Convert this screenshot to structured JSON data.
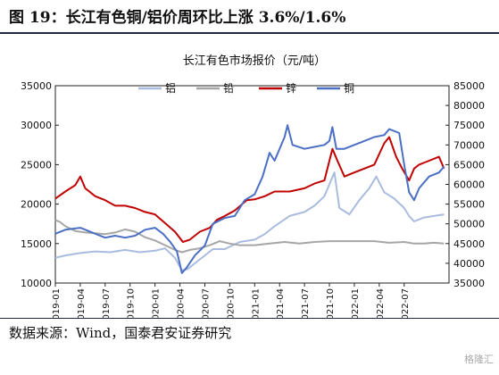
{
  "figure": {
    "title": "图 19：长江有色铜/铝价周环比上涨 3.6%/1.6%",
    "source": "数据来源：Wind，国泰君安证券研究",
    "watermark": "格隆汇"
  },
  "chart_data": {
    "type": "line",
    "title": "长江有色市场报价（元/吨）",
    "xlabel": "",
    "ylabel": "",
    "x_ticks": [
      "2019-01",
      "2019-04",
      "2019-07",
      "2019-10",
      "2020-01",
      "2020-04",
      "2020-07",
      "2020-10",
      "2021-01",
      "2021-04",
      "2021-07",
      "2021-10",
      "2022-01",
      "2022-04",
      "2022-07"
    ],
    "x_range": [
      2019.0,
      2022.95
    ],
    "ylim_left": [
      10000,
      35000
    ],
    "yticks_left": [
      10000,
      15000,
      20000,
      25000,
      30000,
      35000
    ],
    "ylim_right": [
      35000,
      85000
    ],
    "yticks_right": [
      35000,
      40000,
      45000,
      50000,
      55000,
      60000,
      65000,
      70000,
      75000,
      80000,
      85000
    ],
    "legend_position": "top",
    "grid": false,
    "series": [
      {
        "name": "铝",
        "axis": "left",
        "color": "#a9bcdf",
        "points": [
          [
            2019.0,
            13200
          ],
          [
            2019.1,
            13500
          ],
          [
            2019.25,
            13800
          ],
          [
            2019.4,
            14000
          ],
          [
            2019.55,
            13900
          ],
          [
            2019.7,
            14200
          ],
          [
            2019.85,
            13900
          ],
          [
            2020.0,
            14100
          ],
          [
            2020.1,
            14400
          ],
          [
            2020.2,
            13200
          ],
          [
            2020.27,
            11600
          ],
          [
            2020.33,
            11800
          ],
          [
            2020.4,
            12500
          ],
          [
            2020.5,
            13500
          ],
          [
            2020.58,
            14300
          ],
          [
            2020.7,
            14300
          ],
          [
            2020.85,
            15200
          ],
          [
            2021.0,
            15500
          ],
          [
            2021.1,
            16200
          ],
          [
            2021.2,
            17200
          ],
          [
            2021.35,
            18500
          ],
          [
            2021.5,
            19000
          ],
          [
            2021.6,
            19800
          ],
          [
            2021.7,
            21000
          ],
          [
            2021.75,
            22500
          ],
          [
            2021.8,
            24000
          ],
          [
            2021.85,
            19500
          ],
          [
            2021.95,
            18700
          ],
          [
            2022.05,
            20500
          ],
          [
            2022.15,
            22000
          ],
          [
            2022.22,
            23500
          ],
          [
            2022.3,
            21500
          ],
          [
            2022.4,
            20700
          ],
          [
            2022.5,
            19500
          ],
          [
            2022.55,
            18500
          ],
          [
            2022.6,
            17800
          ],
          [
            2022.7,
            18300
          ],
          [
            2022.8,
            18500
          ],
          [
            2022.9,
            18700
          ]
        ]
      },
      {
        "name": "铅",
        "axis": "left",
        "color": "#a6a6a6",
        "points": [
          [
            2019.0,
            18000
          ],
          [
            2019.05,
            17700
          ],
          [
            2019.1,
            17200
          ],
          [
            2019.2,
            16600
          ],
          [
            2019.3,
            16400
          ],
          [
            2019.4,
            16300
          ],
          [
            2019.5,
            16200
          ],
          [
            2019.6,
            16400
          ],
          [
            2019.7,
            16800
          ],
          [
            2019.8,
            16500
          ],
          [
            2019.9,
            15800
          ],
          [
            2020.0,
            15400
          ],
          [
            2020.1,
            14800
          ],
          [
            2020.2,
            14200
          ],
          [
            2020.27,
            13900
          ],
          [
            2020.35,
            14200
          ],
          [
            2020.45,
            14400
          ],
          [
            2020.55,
            14800
          ],
          [
            2020.65,
            15300
          ],
          [
            2020.75,
            15000
          ],
          [
            2020.85,
            14800
          ],
          [
            2021.0,
            14800
          ],
          [
            2021.15,
            15000
          ],
          [
            2021.3,
            15200
          ],
          [
            2021.45,
            15000
          ],
          [
            2021.6,
            15200
          ],
          [
            2021.75,
            15300
          ],
          [
            2021.9,
            15300
          ],
          [
            2022.05,
            15300
          ],
          [
            2022.2,
            15300
          ],
          [
            2022.35,
            15100
          ],
          [
            2022.5,
            15200
          ],
          [
            2022.6,
            15000
          ],
          [
            2022.7,
            15000
          ],
          [
            2022.8,
            15100
          ],
          [
            2022.9,
            15000
          ]
        ]
      },
      {
        "name": "锌",
        "axis": "left",
        "color": "#c00000",
        "points": [
          [
            2019.0,
            20700
          ],
          [
            2019.1,
            21600
          ],
          [
            2019.2,
            22400
          ],
          [
            2019.25,
            23500
          ],
          [
            2019.3,
            22000
          ],
          [
            2019.4,
            21000
          ],
          [
            2019.5,
            20500
          ],
          [
            2019.6,
            19800
          ],
          [
            2019.7,
            19800
          ],
          [
            2019.8,
            19500
          ],
          [
            2019.9,
            19000
          ],
          [
            2020.0,
            18700
          ],
          [
            2020.1,
            17600
          ],
          [
            2020.2,
            16500
          ],
          [
            2020.28,
            15200
          ],
          [
            2020.35,
            15500
          ],
          [
            2020.45,
            16500
          ],
          [
            2020.55,
            17000
          ],
          [
            2020.62,
            18000
          ],
          [
            2020.7,
            18500
          ],
          [
            2020.8,
            19200
          ],
          [
            2020.92,
            20500
          ],
          [
            2021.0,
            20600
          ],
          [
            2021.1,
            21000
          ],
          [
            2021.2,
            21600
          ],
          [
            2021.35,
            21600
          ],
          [
            2021.5,
            22000
          ],
          [
            2021.6,
            22600
          ],
          [
            2021.7,
            23000
          ],
          [
            2021.78,
            27000
          ],
          [
            2021.83,
            25500
          ],
          [
            2021.9,
            23500
          ],
          [
            2022.0,
            24000
          ],
          [
            2022.1,
            24500
          ],
          [
            2022.2,
            25000
          ],
          [
            2022.3,
            27700
          ],
          [
            2022.35,
            28500
          ],
          [
            2022.42,
            26000
          ],
          [
            2022.48,
            24500
          ],
          [
            2022.55,
            23000
          ],
          [
            2022.6,
            24500
          ],
          [
            2022.65,
            25000
          ],
          [
            2022.75,
            25500
          ],
          [
            2022.85,
            26000
          ],
          [
            2022.9,
            24500
          ]
        ]
      },
      {
        "name": "铜",
        "axis": "right",
        "color": "#4a6fc4",
        "points": [
          [
            2019.0,
            47500
          ],
          [
            2019.1,
            48500
          ],
          [
            2019.25,
            49000
          ],
          [
            2019.4,
            47500
          ],
          [
            2019.5,
            46500
          ],
          [
            2019.6,
            47000
          ],
          [
            2019.7,
            46500
          ],
          [
            2019.8,
            47000
          ],
          [
            2019.9,
            48500
          ],
          [
            2020.0,
            49000
          ],
          [
            2020.08,
            47500
          ],
          [
            2020.15,
            45500
          ],
          [
            2020.22,
            43000
          ],
          [
            2020.27,
            37500
          ],
          [
            2020.32,
            39000
          ],
          [
            2020.4,
            42000
          ],
          [
            2020.5,
            44500
          ],
          [
            2020.58,
            50000
          ],
          [
            2020.7,
            51500
          ],
          [
            2020.8,
            52000
          ],
          [
            2020.9,
            56000
          ],
          [
            2021.0,
            57500
          ],
          [
            2021.08,
            62000
          ],
          [
            2021.15,
            68000
          ],
          [
            2021.2,
            66000
          ],
          [
            2021.3,
            72000
          ],
          [
            2021.33,
            75000
          ],
          [
            2021.38,
            70000
          ],
          [
            2021.5,
            69000
          ],
          [
            2021.6,
            69500
          ],
          [
            2021.7,
            70000
          ],
          [
            2021.75,
            71000
          ],
          [
            2021.78,
            74500
          ],
          [
            2021.82,
            69000
          ],
          [
            2021.9,
            69000
          ],
          [
            2022.0,
            70000
          ],
          [
            2022.1,
            71000
          ],
          [
            2022.2,
            72000
          ],
          [
            2022.3,
            72500
          ],
          [
            2022.35,
            74000
          ],
          [
            2022.45,
            73000
          ],
          [
            2022.5,
            65000
          ],
          [
            2022.55,
            58000
          ],
          [
            2022.6,
            56000
          ],
          [
            2022.65,
            59000
          ],
          [
            2022.75,
            62000
          ],
          [
            2022.85,
            63000
          ],
          [
            2022.9,
            64500
          ]
        ]
      }
    ]
  }
}
